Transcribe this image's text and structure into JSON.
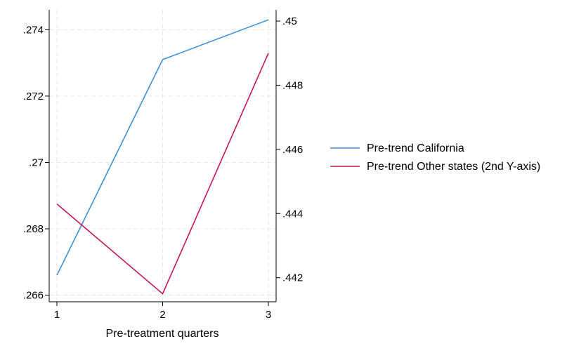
{
  "chart_data": {
    "type": "line",
    "xlabel": "Pre-treatment quarters",
    "x": [
      1,
      2,
      3
    ],
    "xticks": [
      "1",
      "2",
      "3"
    ],
    "xlim": [
      1,
      3
    ],
    "y_left": {
      "ylim": [
        0.2658,
        0.2746
      ],
      "ticks": [
        0.266,
        0.268,
        0.27,
        0.272,
        0.274
      ],
      "tick_labels": [
        ".266",
        ".268",
        ".27",
        ".272",
        ".274"
      ]
    },
    "y_right": {
      "ylim": [
        0.44125,
        0.45035
      ],
      "ticks": [
        0.442,
        0.444,
        0.446,
        0.448,
        0.45
      ],
      "tick_labels": [
        ".442",
        ".444",
        ".446",
        ".448",
        ".45"
      ]
    },
    "series": [
      {
        "name": "Pre-trend California",
        "axis": "left",
        "color": "#3d8fd9",
        "values": [
          0.2666,
          0.2731,
          0.2743
        ]
      },
      {
        "name": "Pre-trend Other states (2nd Y-axis)",
        "axis": "right",
        "color": "#c7175b",
        "values": [
          0.4443,
          0.4415,
          0.449
        ]
      }
    ],
    "grid": true,
    "legend": "right"
  }
}
